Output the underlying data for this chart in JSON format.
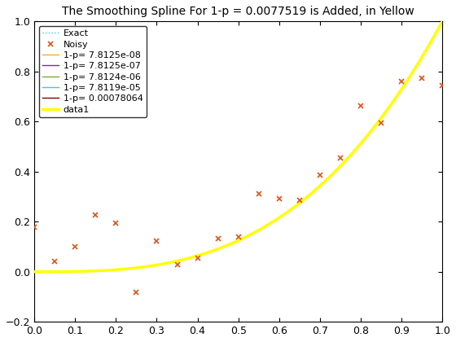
{
  "title": "The Smoothing Spline For 1-p = 0.0077519 is Added, in Yellow",
  "xlim": [
    0,
    1
  ],
  "ylim": [
    -0.2,
    1.0
  ],
  "xticks": [
    0,
    0.1,
    0.2,
    0.3,
    0.4,
    0.5,
    0.6,
    0.7,
    0.8,
    0.9,
    1.0
  ],
  "yticks": [
    -0.2,
    0,
    0.2,
    0.4,
    0.6,
    0.8,
    1.0
  ],
  "exact_color": "#4DBEEE",
  "noisy_color": "#D95319",
  "spline_colors": [
    "#EDB120",
    "#7E2F8E",
    "#77AC30",
    "#4DBEEE",
    "#7F0000"
  ],
  "spline_labels": [
    "1-p= 7.8125e-08",
    "1-p= 7.8125e-07",
    "1-p= 7.8124e-06",
    "1-p= 7.8119e-05",
    "1-p= 0.00078064"
  ],
  "smoothing_params": [
    7.8125e-08,
    7.8125e-07,
    7.8124e-06,
    7.8119e-05,
    0.00078064
  ],
  "final_smoothing": 0.0077519,
  "final_color": "#FFFF00",
  "final_label": "data1",
  "n_noisy": 21,
  "seed": 0,
  "title_fontsize": 10,
  "bg_color": "#FFFFFF",
  "legend_fontsize": 8
}
